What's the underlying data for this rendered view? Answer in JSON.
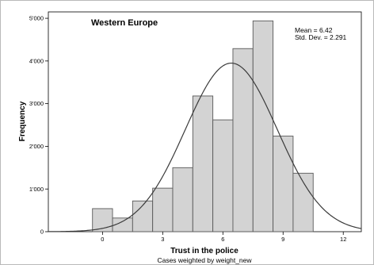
{
  "chart_data": {
    "type": "histogram",
    "title": "Western Europe",
    "xlabel": "Trust in the police",
    "ylabel": "Frequency",
    "footnote": "Cases weighted by weight_new",
    "stats": {
      "mean": "Mean = 6.42",
      "std_dev": "Std. Dev. = 2.291"
    },
    "xlim": [
      -2.7,
      12.9
    ],
    "ylim": [
      0,
      5150
    ],
    "x_ticks": [
      {
        "value": 0,
        "label": "0"
      },
      {
        "value": 3,
        "label": "3"
      },
      {
        "value": 6,
        "label": "6"
      },
      {
        "value": 9,
        "label": "9"
      },
      {
        "value": 12,
        "label": "12"
      }
    ],
    "y_ticks": [
      {
        "value": 0,
        "label": "0"
      },
      {
        "value": 1000,
        "label": "1'000"
      },
      {
        "value": 2000,
        "label": "2'000"
      },
      {
        "value": 3000,
        "label": "3'000"
      },
      {
        "value": 4000,
        "label": "4'000"
      },
      {
        "value": 5000,
        "label": "5'000"
      }
    ],
    "bins": [
      {
        "x0": -0.5,
        "x1": 0.5,
        "value": 540
      },
      {
        "x0": 0.5,
        "x1": 1.5,
        "value": 320
      },
      {
        "x0": 1.5,
        "x1": 2.5,
        "value": 720
      },
      {
        "x0": 2.5,
        "x1": 3.5,
        "value": 1020
      },
      {
        "x0": 3.5,
        "x1": 4.5,
        "value": 1500
      },
      {
        "x0": 4.5,
        "x1": 5.5,
        "value": 3180
      },
      {
        "x0": 5.5,
        "x1": 6.5,
        "value": 2620
      },
      {
        "x0": 6.5,
        "x1": 7.5,
        "value": 4290
      },
      {
        "x0": 7.5,
        "x1": 8.5,
        "value": 4940
      },
      {
        "x0": 8.5,
        "x1": 9.5,
        "value": 2240
      },
      {
        "x0": 9.5,
        "x1": 10.5,
        "value": 1370
      }
    ],
    "normal_curve": {
      "mean": 6.42,
      "std": 2.291,
      "peak": 3950
    },
    "colors": {
      "bar_fill": "#d3d3d3",
      "bar_stroke": "#595959",
      "curve": "#3a3a3a",
      "axis": "#000000"
    }
  }
}
